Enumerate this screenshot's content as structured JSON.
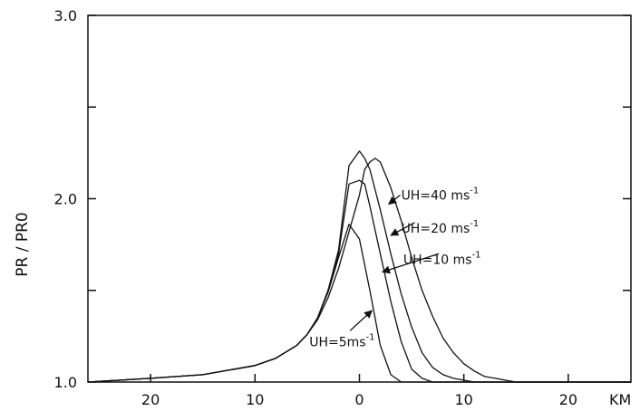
{
  "chart_data": {
    "type": "line",
    "title": "",
    "xlabel": "",
    "ylabel": "PR / PR0",
    "x_unit": "KM",
    "xlim": [
      -26,
      26
    ],
    "ylim": [
      1.0,
      3.0
    ],
    "x_ticks": [
      {
        "value": -20,
        "label": "20"
      },
      {
        "value": -10,
        "label": "10"
      },
      {
        "value": 0,
        "label": "0"
      },
      {
        "value": 10,
        "label": "10"
      },
      {
        "value": 20,
        "label": "20"
      }
    ],
    "y_ticks": [
      {
        "value": 1.0,
        "label": "1.0"
      },
      {
        "value": 1.5,
        "label": ""
      },
      {
        "value": 2.0,
        "label": "2.0"
      },
      {
        "value": 2.5,
        "label": ""
      },
      {
        "value": 3.0,
        "label": "3.0"
      }
    ],
    "grid": false,
    "series": [
      {
        "name": "UH=40 ms⁻¹",
        "points": [
          [
            -26,
            1.0
          ],
          [
            -20,
            1.02
          ],
          [
            -15,
            1.04
          ],
          [
            -12,
            1.07
          ],
          [
            -10,
            1.09
          ],
          [
            -8,
            1.13
          ],
          [
            -6,
            1.2
          ],
          [
            -5,
            1.26
          ],
          [
            -4,
            1.34
          ],
          [
            -3,
            1.46
          ],
          [
            -2,
            1.62
          ],
          [
            -1,
            1.82
          ],
          [
            0,
            2.02
          ],
          [
            0.5,
            2.16
          ],
          [
            1,
            2.2
          ],
          [
            1.5,
            2.22
          ],
          [
            2,
            2.2
          ],
          [
            3,
            2.06
          ],
          [
            4,
            1.88
          ],
          [
            5,
            1.68
          ],
          [
            6,
            1.5
          ],
          [
            7,
            1.36
          ],
          [
            8,
            1.24
          ],
          [
            9,
            1.16
          ],
          [
            10,
            1.1
          ],
          [
            11,
            1.06
          ],
          [
            12,
            1.03
          ],
          [
            13,
            1.02
          ],
          [
            14,
            1.01
          ],
          [
            15,
            1.0
          ],
          [
            26,
            1.0
          ]
        ]
      },
      {
        "name": "UH=20 ms⁻¹",
        "points": [
          [
            -26,
            1.0
          ],
          [
            -20,
            1.02
          ],
          [
            -15,
            1.04
          ],
          [
            -12,
            1.07
          ],
          [
            -10,
            1.09
          ],
          [
            -8,
            1.13
          ],
          [
            -6,
            1.2
          ],
          [
            -5,
            1.26
          ],
          [
            -4,
            1.35
          ],
          [
            -3,
            1.5
          ],
          [
            -2,
            1.72
          ],
          [
            -1,
            2.18
          ],
          [
            0,
            2.26
          ],
          [
            0.5,
            2.22
          ],
          [
            1,
            2.16
          ],
          [
            2,
            1.94
          ],
          [
            3,
            1.7
          ],
          [
            4,
            1.48
          ],
          [
            5,
            1.3
          ],
          [
            6,
            1.16
          ],
          [
            7,
            1.08
          ],
          [
            8,
            1.04
          ],
          [
            9,
            1.02
          ],
          [
            10,
            1.01
          ],
          [
            11,
            1.0
          ],
          [
            26,
            1.0
          ]
        ]
      },
      {
        "name": "UH=10 ms⁻¹",
        "points": [
          [
            -26,
            1.0
          ],
          [
            -20,
            1.02
          ],
          [
            -15,
            1.04
          ],
          [
            -12,
            1.07
          ],
          [
            -10,
            1.09
          ],
          [
            -8,
            1.13
          ],
          [
            -6,
            1.2
          ],
          [
            -5,
            1.26
          ],
          [
            -4,
            1.35
          ],
          [
            -3,
            1.5
          ],
          [
            -2,
            1.7
          ],
          [
            -1,
            2.08
          ],
          [
            0,
            2.1
          ],
          [
            0.5,
            2.08
          ],
          [
            1,
            1.96
          ],
          [
            2,
            1.7
          ],
          [
            3,
            1.44
          ],
          [
            4,
            1.22
          ],
          [
            5,
            1.07
          ],
          [
            6,
            1.02
          ],
          [
            7,
            1.0
          ],
          [
            26,
            1.0
          ]
        ]
      },
      {
        "name": "UH=5ms⁻¹",
        "points": [
          [
            -26,
            1.0
          ],
          [
            -20,
            1.02
          ],
          [
            -15,
            1.04
          ],
          [
            -12,
            1.07
          ],
          [
            -10,
            1.09
          ],
          [
            -8,
            1.13
          ],
          [
            -6,
            1.2
          ],
          [
            -5,
            1.26
          ],
          [
            -4,
            1.35
          ],
          [
            -3,
            1.49
          ],
          [
            -2,
            1.68
          ],
          [
            -1,
            1.86
          ],
          [
            0,
            1.78
          ],
          [
            1,
            1.5
          ],
          [
            2,
            1.2
          ],
          [
            3,
            1.04
          ],
          [
            4,
            1.0
          ],
          [
            26,
            1.0
          ]
        ]
      }
    ],
    "annotations": [
      {
        "series": "UH=40 ms⁻¹",
        "base": "UH=40 ms",
        "sup": "-1",
        "text_x": 4.0,
        "text_y": 2.02,
        "arrow_from": [
          3.9,
          2.02
        ],
        "arrow_to": [
          2.8,
          1.97
        ]
      },
      {
        "series": "UH=20 ms⁻¹",
        "base": "UH=20 ms",
        "sup": "-1",
        "text_x": 4.0,
        "text_y": 1.84,
        "arrow_from": [
          5.3,
          1.87
        ],
        "arrow_to": [
          3.0,
          1.8
        ]
      },
      {
        "series": "UH=10 ms⁻¹",
        "base": "UH=10 ms",
        "sup": "-1",
        "text_x": 4.2,
        "text_y": 1.67,
        "arrow_from": [
          7.6,
          1.7
        ],
        "arrow_to": [
          2.2,
          1.6
        ]
      },
      {
        "series": "UH=5ms⁻¹",
        "base": "UH=5ms",
        "sup": "-1",
        "text_x": -4.8,
        "text_y": 1.22,
        "arrow_from": [
          -0.9,
          1.28
        ],
        "arrow_to": [
          1.2,
          1.39
        ]
      }
    ]
  }
}
